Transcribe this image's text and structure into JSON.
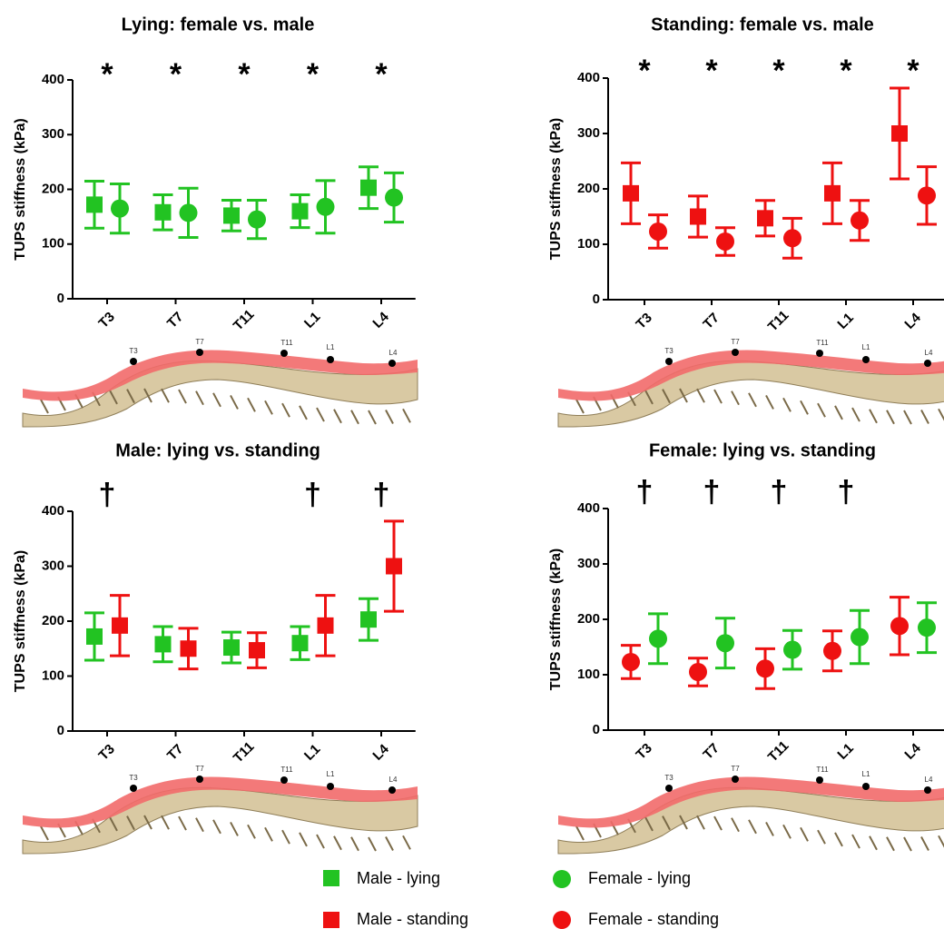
{
  "chart_data": [
    {
      "type": "errorbar",
      "title": "Lying: female vs. male",
      "y_label": "TUPS stiffness (kPa)",
      "categories": [
        "T3",
        "T7",
        "T11",
        "L1",
        "L4"
      ],
      "significance": [
        "*",
        "*",
        "*",
        "*",
        "*"
      ],
      "ylim": [
        0,
        400
      ],
      "yticks": [
        0,
        100,
        200,
        300,
        400
      ],
      "series": [
        {
          "name": "Male - lying",
          "color": "#22c322",
          "marker": "square",
          "values": [
            172,
            158,
            152,
            160,
            203
          ],
          "errors": [
            43,
            32,
            28,
            30,
            38
          ]
        },
        {
          "name": "Female - lying",
          "color": "#22c322",
          "marker": "circle",
          "values": [
            165,
            157,
            145,
            168,
            185
          ],
          "errors": [
            45,
            45,
            35,
            48,
            45
          ]
        }
      ]
    },
    {
      "type": "errorbar",
      "title": "Standing: female vs. male",
      "y_label": "TUPS stiffness (kPa)",
      "categories": [
        "T3",
        "T7",
        "T11",
        "L1",
        "L4"
      ],
      "significance": [
        "*",
        "*",
        "*",
        "*",
        "*"
      ],
      "ylim": [
        0,
        400
      ],
      "yticks": [
        0,
        100,
        200,
        300,
        400
      ],
      "series": [
        {
          "name": "Male - standing",
          "color": "#ee1111",
          "marker": "square",
          "values": [
            192,
            150,
            147,
            192,
            300
          ],
          "errors": [
            55,
            37,
            32,
            55,
            82
          ]
        },
        {
          "name": "Female - standing",
          "color": "#ee1111",
          "marker": "circle",
          "values": [
            123,
            105,
            111,
            143,
            188
          ],
          "errors": [
            30,
            25,
            36,
            36,
            52
          ]
        }
      ]
    },
    {
      "type": "errorbar",
      "title": "Male: lying vs. standing",
      "y_label": "TUPS stiffness (kPa)",
      "categories": [
        "T3",
        "T7",
        "T11",
        "L1",
        "L4"
      ],
      "significance": [
        "†",
        null,
        null,
        "†",
        "†"
      ],
      "ylim": [
        0,
        400
      ],
      "yticks": [
        0,
        100,
        200,
        300,
        400
      ],
      "series": [
        {
          "name": "Male - lying",
          "color": "#22c322",
          "marker": "square",
          "values": [
            172,
            158,
            152,
            160,
            203
          ],
          "errors": [
            43,
            32,
            28,
            30,
            38
          ]
        },
        {
          "name": "Male - standing",
          "color": "#ee1111",
          "marker": "square",
          "values": [
            192,
            150,
            147,
            192,
            300
          ],
          "errors": [
            55,
            37,
            32,
            55,
            82
          ]
        }
      ]
    },
    {
      "type": "errorbar",
      "title": "Female: lying vs. standing",
      "y_label": "TUPS stiffness (kPa)",
      "categories": [
        "T3",
        "T7",
        "T11",
        "L1",
        "L4"
      ],
      "significance": [
        "†",
        "†",
        "†",
        "†",
        null
      ],
      "ylim": [
        0,
        400
      ],
      "yticks": [
        0,
        100,
        200,
        300,
        400
      ],
      "series": [
        {
          "name": "Female - standing",
          "color": "#ee1111",
          "marker": "circle",
          "values": [
            123,
            105,
            111,
            143,
            188
          ],
          "errors": [
            30,
            25,
            36,
            36,
            52
          ]
        },
        {
          "name": "Female - lying",
          "color": "#22c322",
          "marker": "circle",
          "values": [
            165,
            157,
            145,
            168,
            185
          ],
          "errors": [
            45,
            45,
            35,
            48,
            45
          ]
        }
      ]
    }
  ]
}
